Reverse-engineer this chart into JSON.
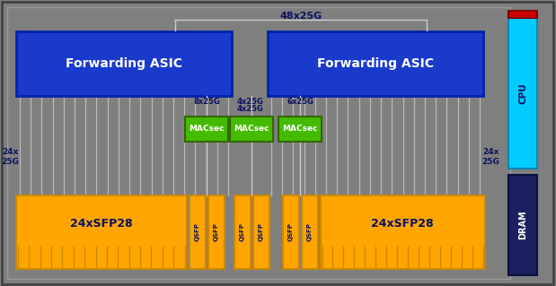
{
  "bg_color": "#7f7f7f",
  "inner_bg": "#7f7f7f",
  "blue_asic": "#1a3acc",
  "orange": "#FFA500",
  "orange_dark": "#cc8800",
  "green_macsec": "#44bb00",
  "green_border": "#336600",
  "cyan_cpu": "#00ccff",
  "red_strip": "#cc0000",
  "navy_dram": "#1a2060",
  "navy_text": "#0a1060",
  "white": "#ffffff",
  "line_color": "#bbbbbb",
  "border_color": "#555555",
  "title": "48x25G",
  "asic1_label": "Forwarding ASIC",
  "asic2_label": "Forwarding ASIC",
  "sfp_left": "24xSFP28",
  "sfp_right": "24xSFP28",
  "cpu_label": "CPU",
  "dram_label": "DRAM",
  "label_left": "24x\n25G",
  "label_right": "24x\n25G",
  "macsec_labels": [
    "MACsec",
    "MACsec",
    "MACsec"
  ],
  "lbl_8x25g": "8x25G",
  "lbl_4x25g_top": "4x25G",
  "lbl_4x25g_mid": "4x25G",
  "lbl_6x25g": "6x25G",
  "qsfp_labels": [
    "QSFP",
    "QSFP",
    "QSFP",
    "QSFP",
    "QSFP",
    "QSFP"
  ]
}
